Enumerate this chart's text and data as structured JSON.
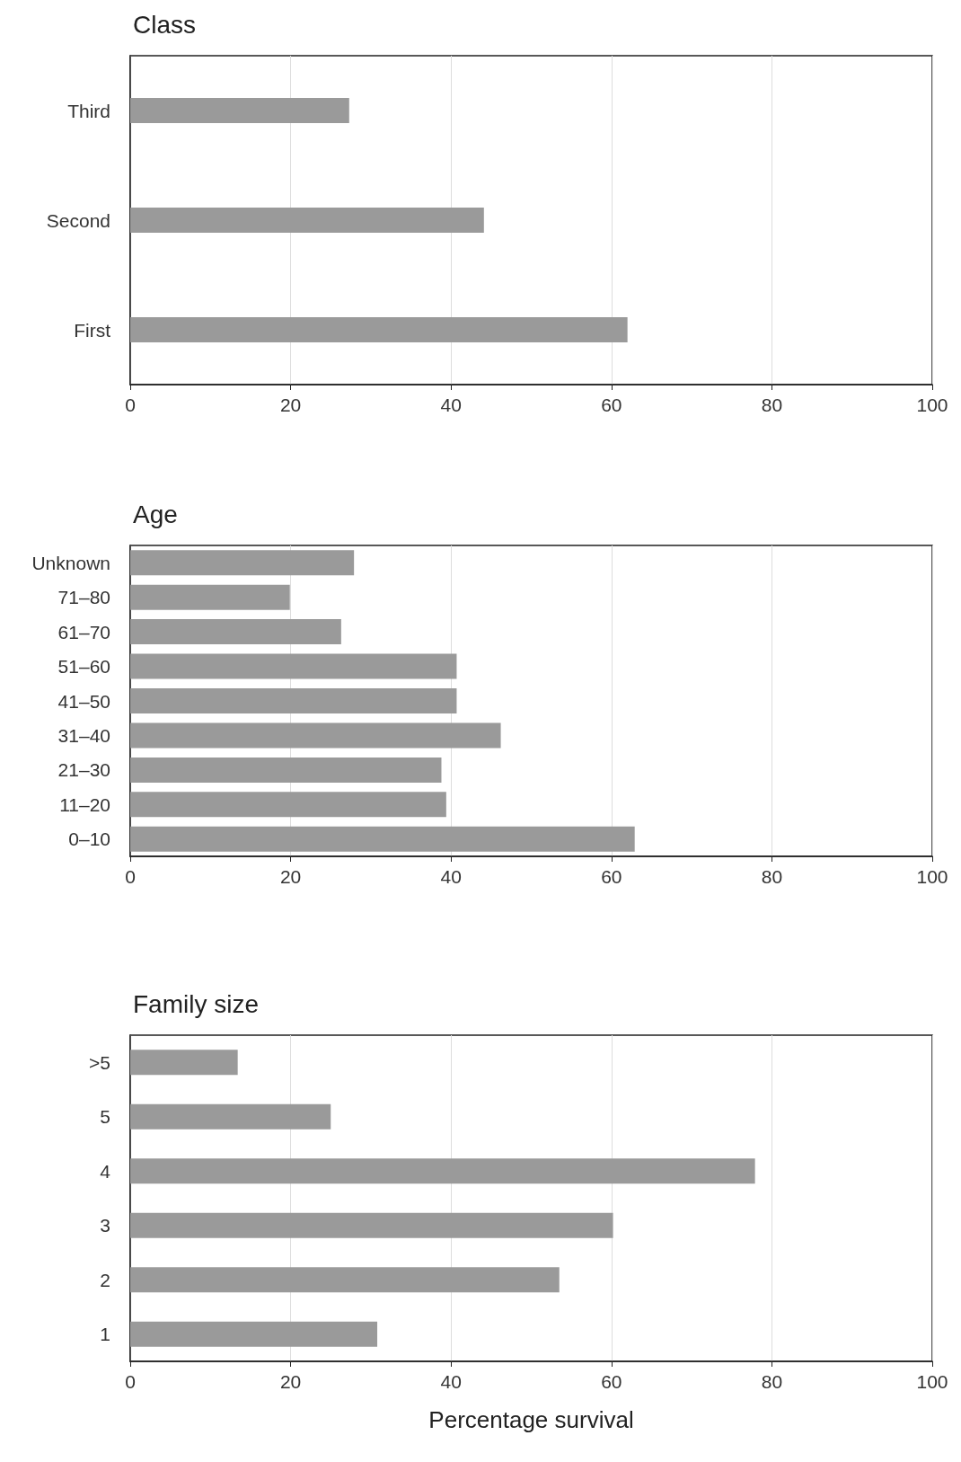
{
  "chart_data": [
    {
      "type": "bar",
      "orientation": "horizontal",
      "title": "Class",
      "categories": [
        "Third",
        "Second",
        "First"
      ],
      "values": [
        27.3,
        44.1,
        62.0
      ],
      "color": "#9a9a9a",
      "xlim": [
        0,
        100
      ],
      "xticks": [
        0,
        20,
        40,
        60,
        80,
        100
      ],
      "grid": "x"
    },
    {
      "type": "bar",
      "orientation": "horizontal",
      "title": "Age",
      "categories": [
        "Unknown",
        "71–80",
        "61–70",
        "51–60",
        "41–50",
        "31–40",
        "21–30",
        "11–20",
        "0–10"
      ],
      "values": [
        27.9,
        19.9,
        26.3,
        40.7,
        40.7,
        46.2,
        38.8,
        39.4,
        62.9
      ],
      "color": "#9a9a9a",
      "xlim": [
        0,
        100
      ],
      "xticks": [
        0,
        20,
        40,
        60,
        80,
        100
      ],
      "grid": "x"
    },
    {
      "type": "bar",
      "orientation": "horizontal",
      "title": "Family size",
      "xlabel": "Percentage survival",
      "categories": [
        ">5",
        "5",
        "4",
        "3",
        "2",
        "1"
      ],
      "values": [
        13.4,
        25.0,
        77.9,
        60.2,
        53.5,
        30.8
      ],
      "color": "#9a9a9a",
      "xlim": [
        0,
        100
      ],
      "xticks": [
        0,
        20,
        40,
        60,
        80,
        100
      ],
      "grid": "x"
    }
  ]
}
